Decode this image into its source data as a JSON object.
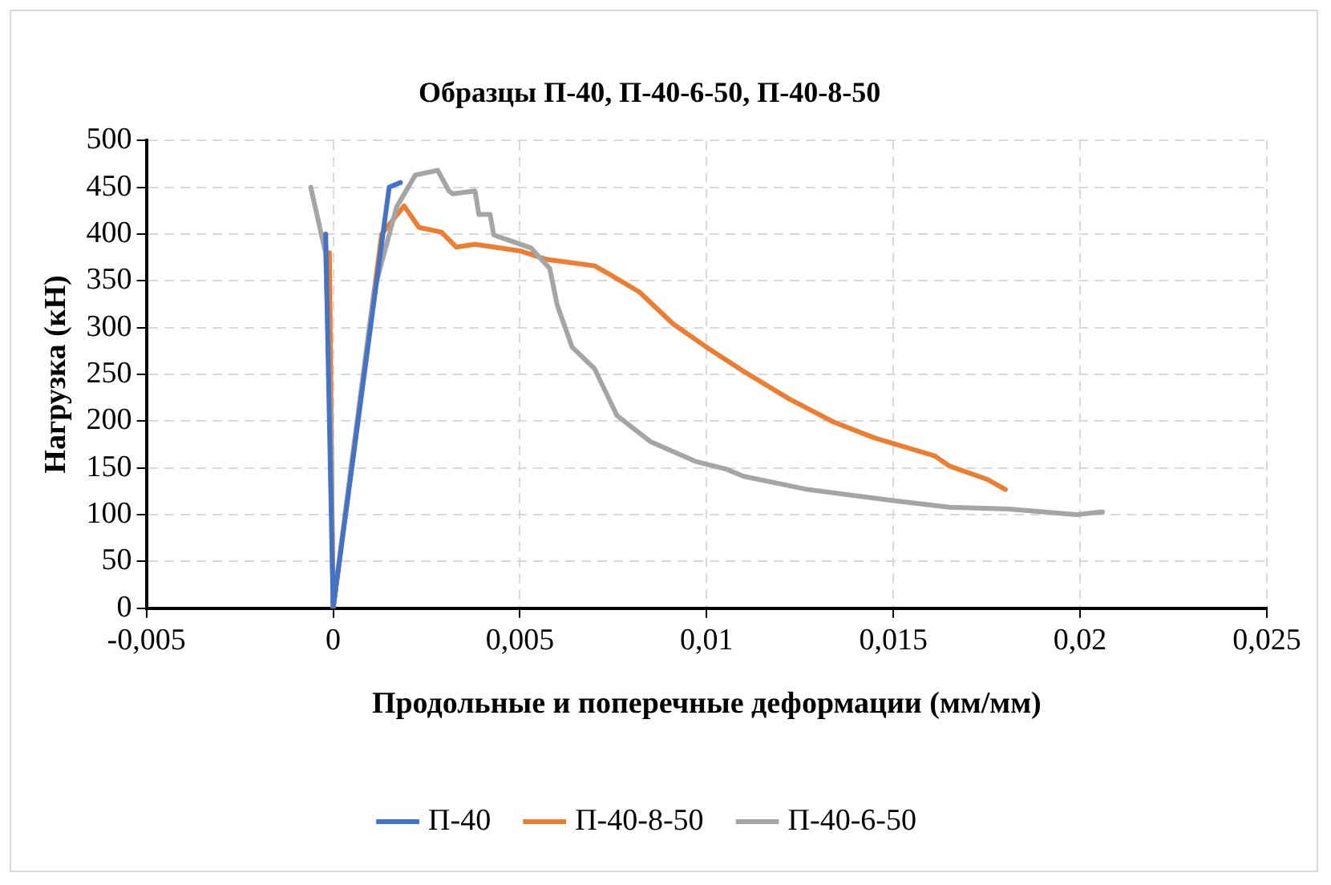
{
  "chart_data": {
    "type": "line",
    "title": "Образцы П-40, П-40-6-50, П-40-8-50",
    "xlabel": "Продольные и поперечные деформации (мм/мм)",
    "ylabel": "Нагрузка (кН)",
    "xlim": [
      -0.005,
      0.025
    ],
    "xticks": [
      {
        "value": -0.005,
        "label": "-0,005"
      },
      0,
      {
        "value": 0.005,
        "label": "0,005"
      },
      {
        "value": 0.01,
        "label": "0,01"
      },
      {
        "value": 0.015,
        "label": "0,015"
      },
      {
        "value": 0.02,
        "label": "0,02"
      },
      {
        "value": 0.025,
        "label": "0,025"
      }
    ],
    "ylim": [
      0,
      500
    ],
    "yticks": [
      0,
      50,
      100,
      150,
      200,
      250,
      300,
      350,
      400,
      450,
      500
    ],
    "grid": true,
    "legend": "bottom",
    "marker": "none",
    "line_style": "solid",
    "series": [
      {
        "name": "П-40",
        "color": "#4472c4",
        "x": [
          -0.0002,
          0,
          0.0015,
          0.0018
        ],
        "values": [
          400,
          0,
          450,
          455
        ]
      },
      {
        "name": "П-40-8-50",
        "color": "#ed7d31",
        "x": [
          -0.0001,
          0,
          0.0013,
          0.0019,
          0.0023,
          0.0029,
          0.0033,
          0.0038,
          0.005,
          0.0057,
          0.007,
          0.0074,
          0.0082,
          0.0091,
          0.01,
          0.011,
          0.0122,
          0.0134,
          0.0145,
          0.0161,
          0.0165,
          0.0175,
          0.018
        ],
        "values": [
          380,
          0,
          400,
          430,
          407,
          402,
          386,
          389,
          382,
          373,
          366,
          357,
          338,
          304,
          279,
          253,
          224,
          199,
          182,
          163,
          152,
          138,
          127
        ]
      },
      {
        "name": "П-40-6-50",
        "color": "#a5a5a5",
        "x": [
          -0.0006,
          -0.0002,
          -6e-05,
          0,
          0.0005,
          0.0011,
          0.0017,
          0.0022,
          0.0028,
          0.0031,
          0.0032,
          0.0038,
          0.0039,
          0.0042,
          0.0043,
          0.0053,
          0.0058,
          0.006,
          0.0064,
          0.007,
          0.0076,
          0.0085,
          0.0097,
          0.0105,
          0.011,
          0.0127,
          0.015,
          0.0165,
          0.0181,
          0.0199,
          0.0206
        ],
        "values": [
          450,
          379,
          185,
          0,
          157,
          340,
          429,
          463,
          468,
          446,
          443,
          446,
          421,
          421,
          399,
          385,
          363,
          324,
          279,
          256,
          206,
          178,
          157,
          149,
          141,
          127,
          115,
          108,
          106,
          100,
          103
        ]
      }
    ]
  }
}
